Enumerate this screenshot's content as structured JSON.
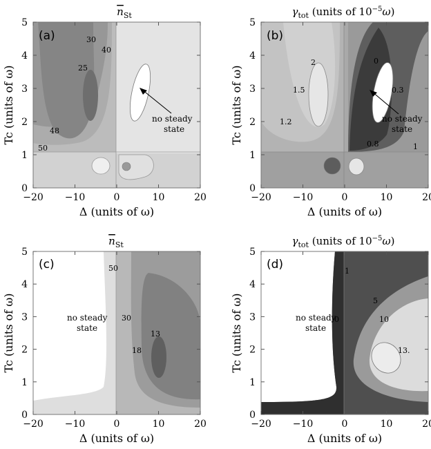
{
  "chart_data": [
    {
      "type": "contour",
      "panel_label": "(a)",
      "title": "n̄St",
      "xlabel": "Δ (units of ω)",
      "ylabel": "Tc (units of ω)",
      "xlim": [
        -20,
        20
      ],
      "ylim": [
        0,
        5
      ],
      "xticks": [
        "−20",
        "−10",
        "0",
        "10",
        "20"
      ],
      "yticks": [
        "0",
        "1",
        "2",
        "3",
        "4",
        "5"
      ],
      "contour_labels": [
        {
          "text": "30",
          "x": -8,
          "y": 4.5
        },
        {
          "text": "40",
          "x": -4,
          "y": 4.1
        },
        {
          "text": "25",
          "x": -11,
          "y": 3.35
        },
        {
          "text": "48",
          "x": -17,
          "y": 1.6
        },
        {
          "text": "50",
          "x": -19,
          "y": 1.05
        }
      ],
      "annotation": "no steady state"
    },
    {
      "type": "contour",
      "panel_label": "(b)",
      "title": "γtot (units of 10−5ω)",
      "xlabel": "Δ (units of ω)",
      "ylabel": "Tc (units of ω)",
      "xlim": [
        -20,
        20
      ],
      "ylim": [
        0,
        5
      ],
      "xticks": [
        "−20",
        "−10",
        "0",
        "10",
        "20"
      ],
      "yticks": [
        "0",
        "1",
        "2",
        "3",
        "4",
        "5"
      ],
      "contour_labels": [
        {
          "text": "2",
          "x": -9,
          "y": 3.75
        },
        {
          "text": "1.5",
          "x": -15,
          "y": 2.85
        },
        {
          "text": "1.2",
          "x": -16,
          "y": 1.9
        },
        {
          "text": "0",
          "x": 7,
          "y": 3.75
        },
        {
          "text": "0.3",
          "x": 10.5,
          "y": 2.85
        },
        {
          "text": "0.8",
          "x": 6,
          "y": 1.25
        },
        {
          "text": "1",
          "x": 18,
          "y": 1.1
        }
      ],
      "annotation": "no steady state"
    },
    {
      "type": "contour",
      "panel_label": "(c)",
      "title": "n̄St",
      "xlabel": "Δ (units of ω)",
      "ylabel": "Tc (units of ω)",
      "xlim": [
        -20,
        20
      ],
      "ylim": [
        0,
        5
      ],
      "xticks": [
        "−20",
        "−10",
        "0",
        "10",
        "20"
      ],
      "yticks": [
        "0",
        "1",
        "2",
        "3",
        "4",
        "5"
      ],
      "contour_labels": [
        {
          "text": "50",
          "x": -2,
          "y": 4.7
        },
        {
          "text": "30",
          "x": 3,
          "y": 3.1
        },
        {
          "text": "13",
          "x": 11,
          "y": 2.4
        },
        {
          "text": "18",
          "x": 5.5,
          "y": 1.8
        }
      ],
      "annotation": "no steady state"
    },
    {
      "type": "contour",
      "panel_label": "(d)",
      "title": "γtot (units of 10−5ω)",
      "xlabel": "Δ (units of ω)",
      "ylabel": "Tc (units of ω)",
      "xlim": [
        -20,
        20
      ],
      "ylim": [
        0,
        5
      ],
      "xticks": [
        "−20",
        "−10",
        "0",
        "10",
        "20"
      ],
      "yticks": [
        "0",
        "1",
        "2",
        "3",
        "4",
        "5"
      ],
      "contour_labels": [
        {
          "text": "1",
          "x": 0.5,
          "y": 4.5
        },
        {
          "text": "5",
          "x": 6,
          "y": 3.5
        },
        {
          "text": "10",
          "x": 10,
          "y": 2.9
        },
        {
          "text": "0",
          "x": -2,
          "y": 2.9
        },
        {
          "text": "13.",
          "x": 15,
          "y": 1.8
        }
      ],
      "annotation": "no steady state"
    }
  ]
}
